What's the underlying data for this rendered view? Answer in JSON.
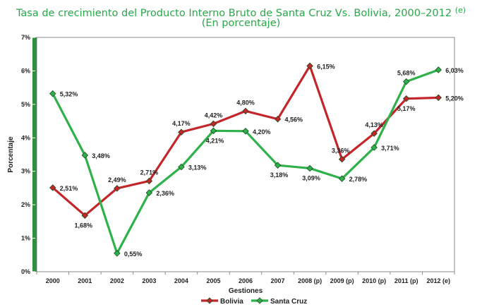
{
  "header": {
    "title_line1": "Tasa de crecimiento del Producto Interno Bruto de Santa Cruz Vs. Bolivia, 2000–2012",
    "title_sup": "(e)",
    "title_line2": "(En porcentaje)"
  },
  "colors": {
    "bolivia": "#c4252a",
    "santa_cruz": "#2eb04a",
    "title": "#2aa64a",
    "axis_band": "#2f8f3c"
  },
  "chart_data": {
    "type": "line",
    "title": "Tasa de crecimiento del Producto Interno Bruto de Santa Cruz Vs. Bolivia, 2000–2012 (e)",
    "subtitle": "(En porcentaje)",
    "xlabel": "Gestiones",
    "ylabel": "Porcentaje",
    "ylim": [
      0,
      7
    ],
    "y_ticks": [
      "0%",
      "1%",
      "2%",
      "3%",
      "4%",
      "5%",
      "6%",
      "7%"
    ],
    "categories": [
      "2000",
      "2001",
      "2002",
      "2003",
      "2004",
      "2005",
      "2006",
      "2007",
      "2008 (p)",
      "2009 (p)",
      "2010 (p)",
      "2011 (p)",
      "2012 (e)"
    ],
    "legend_position": "bottom-center",
    "grid": false,
    "series": [
      {
        "name": "Bolivia",
        "values": [
          2.51,
          1.68,
          2.49,
          2.71,
          4.17,
          4.42,
          4.8,
          4.56,
          6.15,
          3.36,
          4.13,
          5.17,
          5.2
        ],
        "labels": [
          "2,51%",
          "1,68%",
          "2,49%",
          "2,71%",
          "4,17%",
          "4,42%",
          "4,80%",
          "4,56%",
          "6,15%",
          "3,36%",
          "4,13%",
          "5,17%",
          "5,20%"
        ]
      },
      {
        "name": "Santa Cruz",
        "values": [
          5.32,
          3.48,
          0.55,
          2.36,
          3.13,
          4.21,
          4.2,
          3.18,
          3.09,
          2.78,
          3.71,
          5.68,
          6.03
        ],
        "labels": [
          "5,32%",
          "3,48%",
          "0,55%",
          "2,36%",
          "3,13%",
          "4,21%",
          "4,20%",
          "3,18%",
          "3,09%",
          "2,78%",
          "3,71%",
          "5,68%",
          "6,03%"
        ]
      }
    ]
  }
}
